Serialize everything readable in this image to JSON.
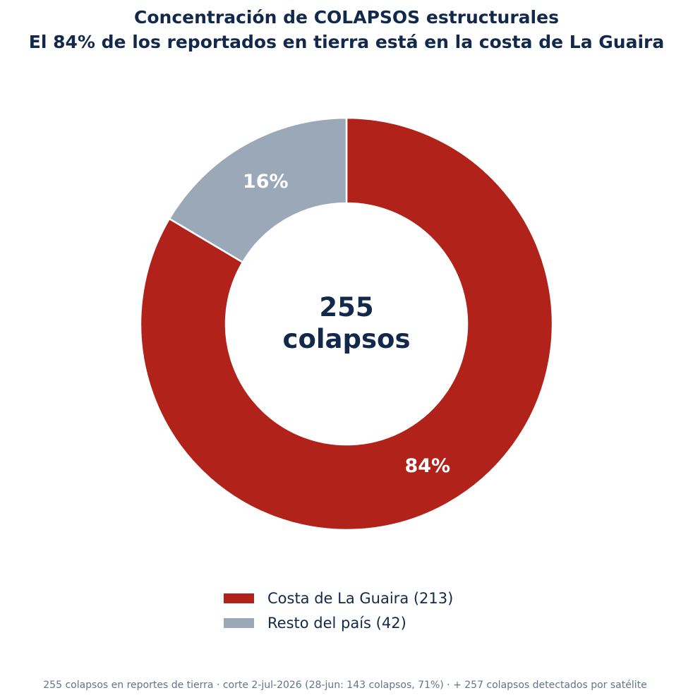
{
  "chart_data": {
    "type": "pie",
    "variant": "donut",
    "title": "Concentración de COLAPSOS estructurales",
    "subtitle": "El 84% de los reportados en tierra está en la costa de La Guaira",
    "center_label": {
      "value": "255",
      "unit": "colapsos"
    },
    "slices": [
      {
        "name": "Costa de La Guaira",
        "value": 213,
        "label": "84%",
        "color": "#b0221a"
      },
      {
        "name": "Resto del país",
        "value": 42,
        "label": "16%",
        "color": "#9aa8b7"
      }
    ],
    "legend": {
      "placement": "bottom-center",
      "items": [
        "Costa de La Guaira (213)",
        "Resto del país (42)"
      ]
    },
    "footnote": "255 colapsos en reportes de tierra · corte 2-jul-2026 (28-jun: 143 colapsos, 71%) · + 257 colapsos detectados por satélite"
  }
}
